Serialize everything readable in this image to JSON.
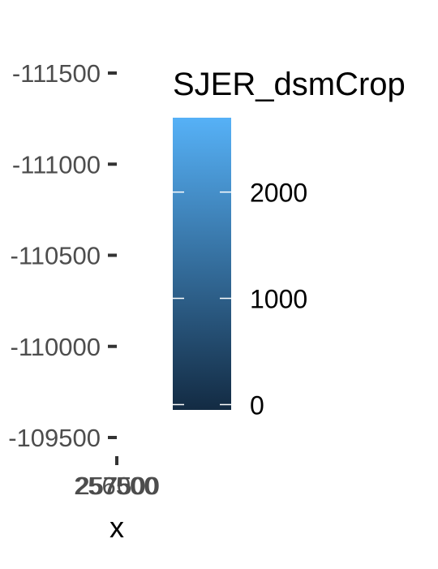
{
  "chart_data": {
    "type": "heatmap",
    "title": "",
    "xlabel": "x",
    "ylabel": "",
    "y_ticks": [
      {
        "label": "-111500",
        "value": -111500
      },
      {
        "label": "-111000",
        "value": -111000
      },
      {
        "label": "-110500",
        "value": -110500
      },
      {
        "label": "-110000",
        "value": -110000
      },
      {
        "label": "-109500",
        "value": -109500
      }
    ],
    "ylim": [
      -109500,
      -111500
    ],
    "x_ticks": [
      {
        "label": "256500"
      },
      {
        "label": "257000"
      },
      {
        "label": "257500"
      }
    ],
    "legend": {
      "title": "SJER_dsmCrop",
      "placement": "right",
      "range": [
        -50,
        2700
      ],
      "ticks": [
        0,
        1000,
        2000
      ],
      "colors": {
        "low": "#132B43",
        "high": "#56B1F7"
      }
    },
    "grid": false,
    "colors": {
      "axis_text": "#4d4d4d",
      "tick_mark": "#333333",
      "legend_text": "#000000"
    }
  }
}
